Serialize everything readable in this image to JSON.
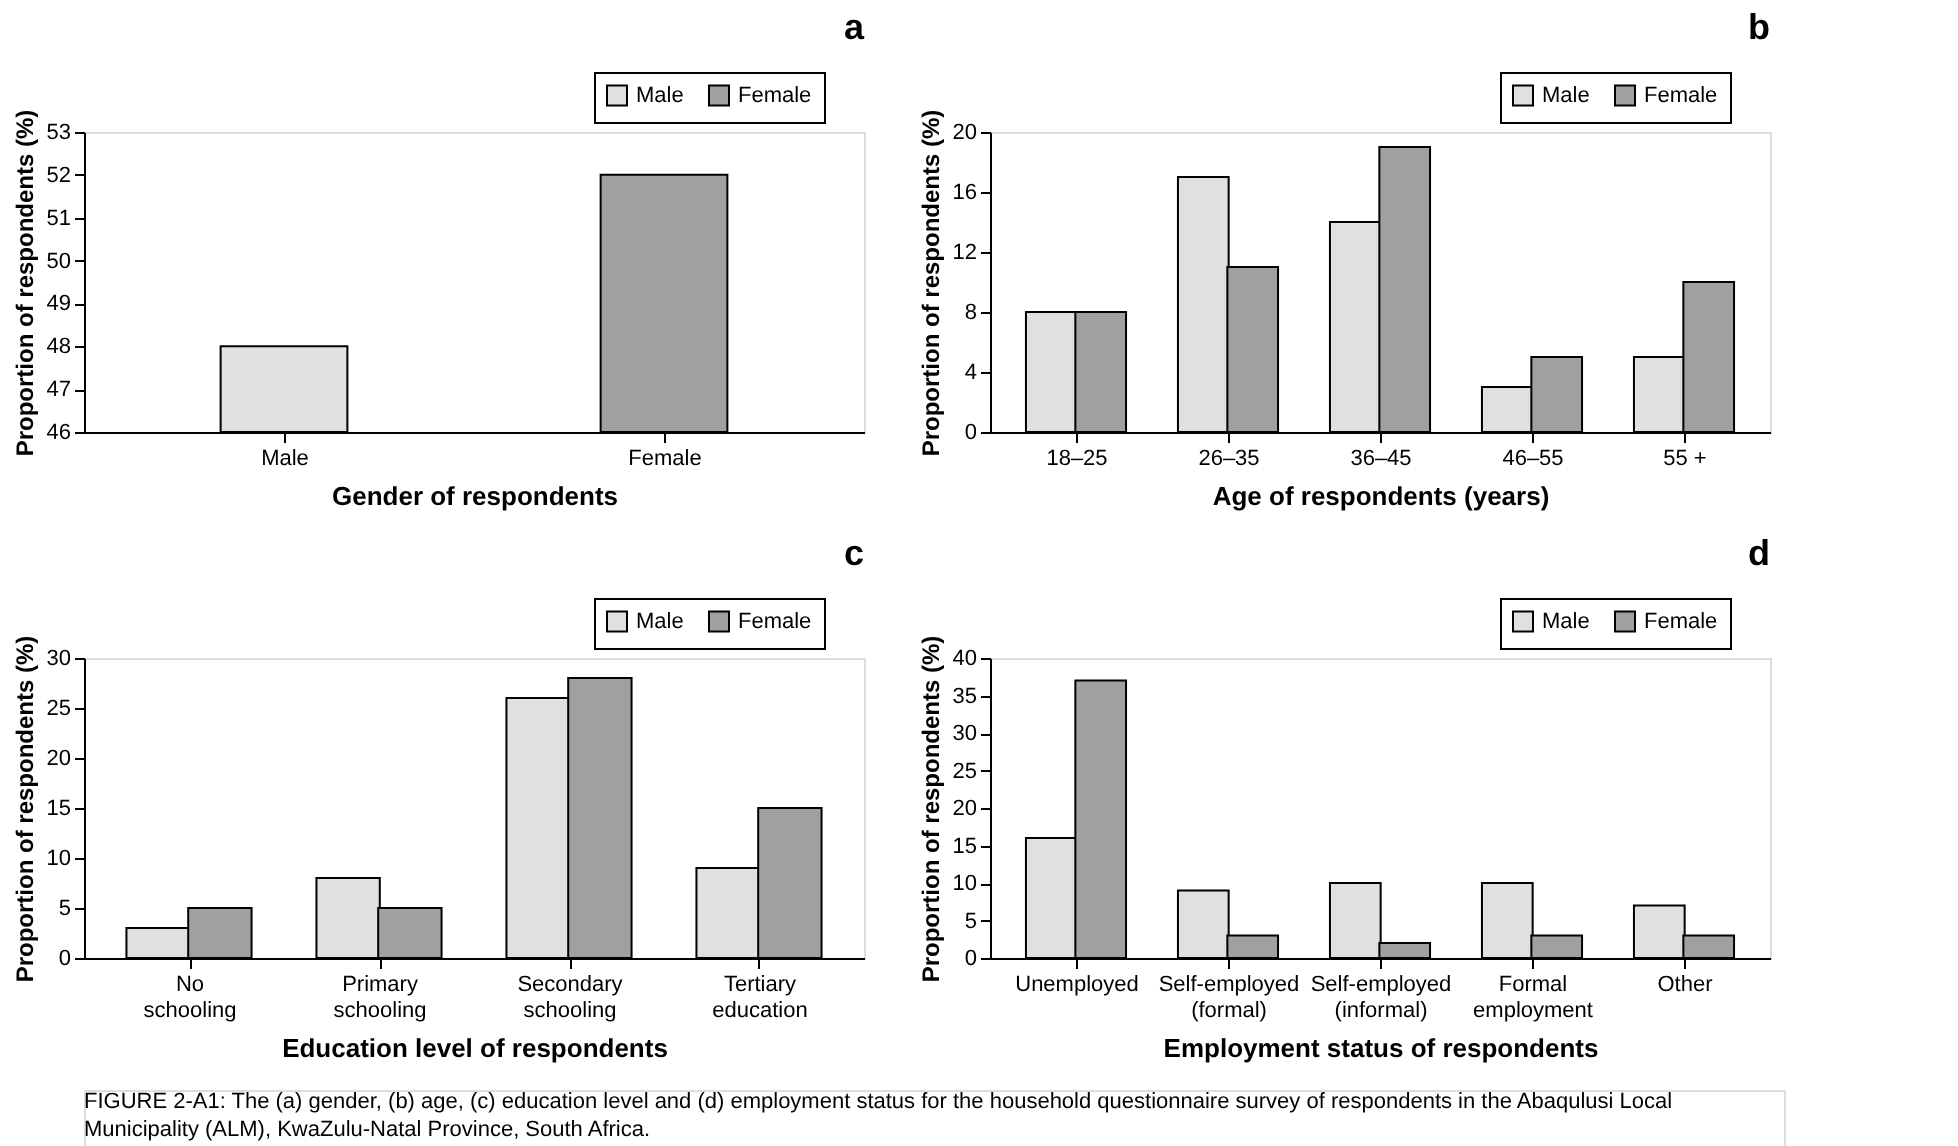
{
  "chart_data": [
    {
      "type": "bar",
      "title": "a",
      "xlabel": "Gender of respondents",
      "ylabel": "Proportion of respondents (%)",
      "categories": [
        "Male",
        "Female"
      ],
      "series": [
        {
          "name": "Male",
          "color": "#e0e0e0",
          "values": [
            48,
            null
          ]
        },
        {
          "name": "Female",
          "color": "#a0a0a0",
          "values": [
            null,
            52
          ]
        }
      ],
      "ylim": [
        46,
        53
      ],
      "yticks": [
        46,
        47,
        48,
        49,
        50,
        51,
        52,
        53
      ],
      "grid": false,
      "legend": "top right"
    },
    {
      "type": "bar",
      "title": "b",
      "xlabel": "Age of respondents (years)",
      "ylabel": "Proportion of respondents (%)",
      "categories": [
        "18–25",
        "26–35",
        "36–45",
        "46–55",
        "55 +"
      ],
      "series": [
        {
          "name": "Male",
          "color": "#e0e0e0",
          "values": [
            8,
            17,
            14,
            3,
            5
          ]
        },
        {
          "name": "Female",
          "color": "#a0a0a0",
          "values": [
            8,
            11,
            19,
            5,
            10
          ]
        }
      ],
      "ylim": [
        0,
        20
      ],
      "yticks": [
        0,
        4,
        8,
        12,
        16,
        20
      ],
      "grid": false,
      "legend": "top right"
    },
    {
      "type": "bar",
      "title": "c",
      "xlabel": "Education level of respondents",
      "ylabel": "Proportion of respondents (%)",
      "categories": [
        "No schooling",
        "Primary schooling",
        "Secondary schooling",
        "Tertiary education"
      ],
      "series": [
        {
          "name": "Male",
          "color": "#e0e0e0",
          "values": [
            3,
            8,
            26,
            9
          ]
        },
        {
          "name": "Female",
          "color": "#a0a0a0",
          "values": [
            5,
            5,
            28,
            15
          ]
        }
      ],
      "ylim": [
        0,
        30
      ],
      "yticks": [
        0,
        5,
        10,
        15,
        20,
        25,
        30
      ],
      "grid": false,
      "legend": "top right"
    },
    {
      "type": "bar",
      "title": "d",
      "xlabel": "Employment status of respondents",
      "ylabel": "Proportion of respondents (%)",
      "categories": [
        "Unemployed",
        "Self-employed (formal)",
        "Self-employed (informal)",
        "Formal employment",
        "Other"
      ],
      "series": [
        {
          "name": "Male",
          "color": "#e0e0e0",
          "values": [
            16,
            9,
            10,
            10,
            7
          ]
        },
        {
          "name": "Female",
          "color": "#a0a0a0",
          "values": [
            37,
            3,
            2,
            3,
            3
          ]
        }
      ],
      "ylim": [
        0,
        40
      ],
      "yticks": [
        0,
        5,
        10,
        15,
        20,
        25,
        30,
        35,
        40
      ],
      "grid": false,
      "legend": "top right",
      "annotations": [
        "FIGURE 2-A1: The (a) gender, (b) age, (c) education level and (d) employment status for the household questionnaire survey of respondents in the Abaqulusi Local Municipality (ALM), KwaZulu-Natal Province, South Africa."
      ]
    }
  ]
}
